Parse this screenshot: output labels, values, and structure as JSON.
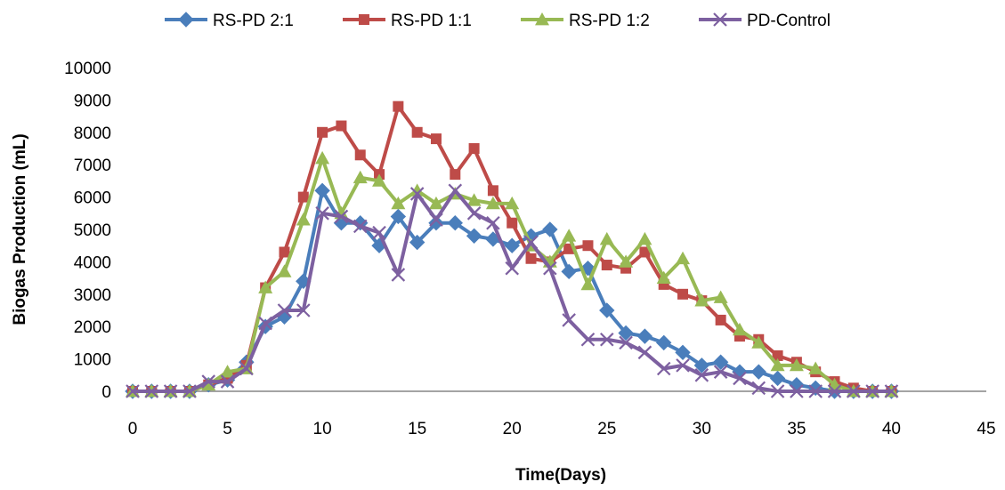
{
  "chart_data": {
    "type": "line",
    "title": "",
    "xlabel": "Time(Days)",
    "ylabel": "Biogas Production (mL)",
    "xlim": [
      0,
      45
    ],
    "ylim": [
      0,
      10000
    ],
    "x_ticks": [
      0,
      5,
      10,
      15,
      20,
      25,
      30,
      35,
      40,
      45
    ],
    "y_ticks": [
      0,
      1000,
      2000,
      3000,
      4000,
      5000,
      6000,
      7000,
      8000,
      9000,
      10000
    ],
    "grid": false,
    "legend_position": "top",
    "x": [
      0,
      1,
      2,
      3,
      4,
      5,
      6,
      7,
      8,
      9,
      10,
      11,
      12,
      13,
      14,
      15,
      16,
      17,
      18,
      19,
      20,
      21,
      22,
      23,
      24,
      25,
      26,
      27,
      28,
      29,
      30,
      31,
      32,
      33,
      34,
      35,
      36,
      37,
      38,
      39,
      40
    ],
    "series": [
      {
        "name": "RS-PD 2:1",
        "color": "#4a7ebb",
        "marker": "diamond",
        "values": [
          0,
          0,
          0,
          0,
          200,
          350,
          900,
          2000,
          2300,
          3400,
          6200,
          5200,
          5200,
          4500,
          5400,
          4600,
          5200,
          5200,
          4800,
          4700,
          4500,
          4800,
          5000,
          3700,
          3800,
          2500,
          1800,
          1700,
          1500,
          1200,
          800,
          900,
          600,
          600,
          400,
          200,
          100,
          0,
          0,
          0,
          0
        ]
      },
      {
        "name": "RS-PD 1:1",
        "color": "#be4b48",
        "marker": "square",
        "values": [
          0,
          0,
          0,
          0,
          200,
          400,
          800,
          3200,
          4300,
          6000,
          8000,
          8200,
          7300,
          6700,
          8800,
          8000,
          7800,
          6700,
          7500,
          6200,
          5200,
          4100,
          4000,
          4400,
          4500,
          3900,
          3800,
          4300,
          3300,
          3000,
          2800,
          2200,
          1700,
          1600,
          1100,
          900,
          600,
          300,
          100,
          0,
          0
        ]
      },
      {
        "name": "RS-PD 1:2",
        "color": "#98b954",
        "marker": "triangle",
        "values": [
          0,
          0,
          0,
          0,
          200,
          600,
          700,
          3200,
          3700,
          5300,
          7200,
          5500,
          6600,
          6500,
          5800,
          6200,
          5800,
          6100,
          5900,
          5800,
          5800,
          4500,
          4000,
          4800,
          3300,
          4700,
          4000,
          4700,
          3500,
          4100,
          2800,
          2900,
          1900,
          1500,
          800,
          800,
          700,
          200,
          0,
          0,
          0
        ]
      },
      {
        "name": "PD-Control",
        "color": "#7d60a0",
        "marker": "x",
        "values": [
          0,
          0,
          0,
          0,
          300,
          300,
          700,
          2100,
          2500,
          2500,
          5500,
          5400,
          5100,
          4900,
          3600,
          6100,
          5300,
          6200,
          5500,
          5200,
          3800,
          4600,
          3800,
          2200,
          1600,
          1600,
          1500,
          1200,
          700,
          800,
          500,
          600,
          400,
          100,
          0,
          0,
          0,
          0,
          0,
          0,
          0
        ]
      }
    ]
  }
}
